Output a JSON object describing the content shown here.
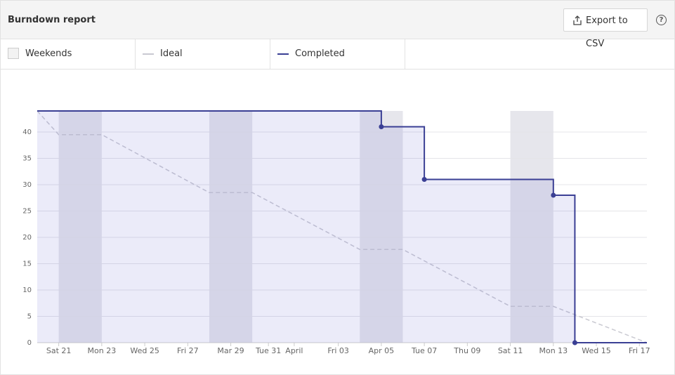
{
  "header": {
    "title": "Burndown report",
    "button": "Export to CSV",
    "help": "?"
  },
  "chart_data": {
    "type": "line",
    "weekends": {
      "name": "Weekends",
      "color": "#e6e6ec",
      "bands": [
        [
          1,
          3
        ],
        [
          8,
          10
        ],
        [
          15,
          17
        ],
        [
          22,
          24
        ]
      ]
    },
    "series": [
      {
        "name": "Ideal",
        "color": "#c9c9d1",
        "dashed": true,
        "x": [
          0,
          1,
          3,
          8,
          10,
          15,
          17,
          22,
          24,
          28.35
        ],
        "values": [
          44,
          39.5,
          39.5,
          28.5,
          28.5,
          17.7,
          17.7,
          6.9,
          6.9,
          0
        ]
      },
      {
        "name": "Completed",
        "color": "#3a3f94",
        "fill": "rgba(110,110,215,0.14)",
        "x": [
          0,
          16,
          16,
          18,
          18,
          24,
          24,
          25,
          25,
          28.35
        ],
        "values": [
          44,
          44,
          41,
          41,
          31,
          31,
          28,
          28,
          0,
          0
        ]
      }
    ],
    "xlim": [
      0,
      28.35
    ],
    "ylim": [
      0,
      44
    ],
    "xticks": [
      {
        "value": 1,
        "label": "Sat 21"
      },
      {
        "value": 3,
        "label": "Mon 23"
      },
      {
        "value": 5,
        "label": "Wed 25"
      },
      {
        "value": 7,
        "label": "Fri 27"
      },
      {
        "value": 9,
        "label": "Mar 29"
      },
      {
        "value": 10.75,
        "label": "Tue 31"
      },
      {
        "value": 11.95,
        "label": "April"
      },
      {
        "value": 14,
        "label": "Fri 03"
      },
      {
        "value": 16,
        "label": "Apr 05"
      },
      {
        "value": 18,
        "label": "Tue 07"
      },
      {
        "value": 20,
        "label": "Thu 09"
      },
      {
        "value": 22,
        "label": "Sat 11"
      },
      {
        "value": 24,
        "label": "Mon 13"
      },
      {
        "value": 26,
        "label": "Wed 15"
      },
      {
        "value": 28,
        "label": "Fri 17"
      }
    ],
    "yticks": [
      0,
      5,
      10,
      15,
      20,
      25,
      30,
      35,
      40
    ],
    "grid": true
  }
}
